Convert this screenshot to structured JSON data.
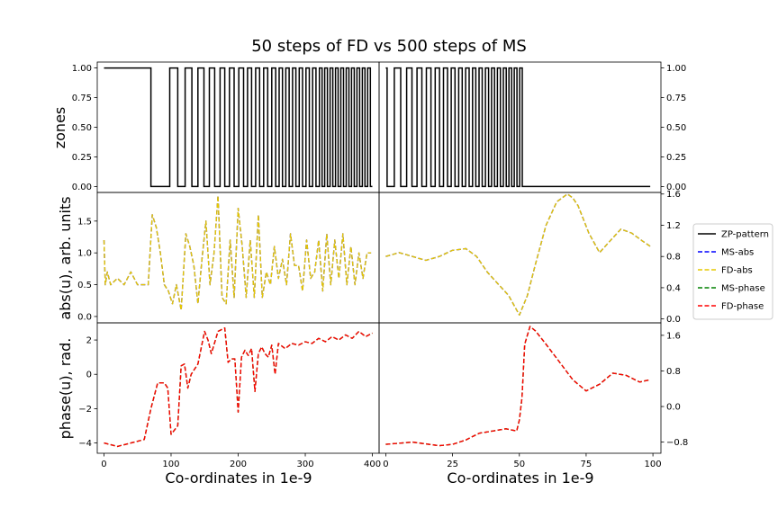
{
  "chart_data": {
    "type": "line",
    "title": "50 steps of FD vs 500 steps of MS",
    "layout": "3 rows x 2 columns, shared axes",
    "legend": {
      "placement": "right",
      "entries": [
        {
          "name": "ZP-pattern",
          "color": "#000000",
          "style": "solid"
        },
        {
          "name": "MS-abs",
          "color": "#0000ff",
          "style": "dashed"
        },
        {
          "name": "FD-abs",
          "color": "#e6c800",
          "style": "dashed"
        },
        {
          "name": "MS-phase",
          "color": "#008000",
          "style": "dashed"
        },
        {
          "name": "FD-phase",
          "color": "#ff0000",
          "style": "dashed"
        }
      ]
    },
    "columns": [
      {
        "xlabel": "Co-ordinates in 1e-9",
        "xlim": [
          -10,
          410
        ],
        "xticks": [
          0,
          100,
          200,
          300,
          400
        ],
        "tick_side": "left"
      },
      {
        "xlabel": "Co-ordinates in 1e-9",
        "xlim": [
          -2.5,
          103
        ],
        "xticks": [
          0,
          25,
          50,
          75,
          100
        ],
        "tick_side": "right"
      }
    ],
    "rows": [
      {
        "ylabel": "zones"
      },
      {
        "ylabel": "abs(u), arb. units"
      },
      {
        "ylabel": "phase(u), rad."
      }
    ],
    "panels": [
      {
        "row": 0,
        "col": 0,
        "ylim": [
          -0.05,
          1.05
        ],
        "yticks": [
          "0.00",
          "0.25",
          "0.50",
          "0.75",
          "1.00"
        ],
        "zp_edges": [
          70,
          98,
          110,
          121,
          131,
          140,
          149,
          157,
          165,
          173,
          180,
          187,
          194,
          201,
          208,
          214,
          220,
          226,
          232,
          238,
          244,
          250,
          256,
          261,
          266,
          271,
          276,
          281,
          286,
          291,
          296,
          301,
          306,
          311,
          316,
          321,
          325,
          329,
          333,
          337,
          341,
          345,
          349,
          353,
          357,
          361,
          365,
          369,
          373,
          377,
          381,
          385,
          389,
          393,
          397
        ],
        "zp_xmax": 400,
        "series": [
          {
            "name": "ZP-pattern",
            "x": [
              0,
              70,
              70,
              98,
              98,
              400
            ],
            "y": [
              1,
              1,
              0,
              0,
              1,
              0
            ]
          }
        ]
      },
      {
        "row": 0,
        "col": 1,
        "ylim": [
          -0.05,
          1.05
        ],
        "yticks": [
          "0.00",
          "0.25",
          "0.50",
          "0.75",
          "1.00"
        ],
        "zp_edges": [
          0.5,
          3.2,
          5.6,
          7.8,
          9.8,
          11.7,
          13.5,
          15.2,
          16.9,
          18.5,
          20.1,
          21.6,
          23.1,
          24.5,
          25.9,
          27.3,
          28.6,
          29.9,
          31.2,
          32.5,
          33.7,
          34.9,
          36.1,
          37.3,
          38.5,
          39.6,
          40.7,
          41.8,
          42.9,
          44.0,
          45.1,
          46.1,
          47.1,
          48.1,
          49.1,
          50.1,
          51.1
        ],
        "zp_xmax": 99,
        "series": [
          {
            "name": "ZP-pattern",
            "x": [
              0,
              51.1,
              99
            ],
            "y": [
              1,
              0,
              0
            ]
          }
        ]
      },
      {
        "row": 1,
        "col": 0,
        "ylim": [
          -0.1,
          1.95
        ],
        "yticks": [
          "0.0",
          "0.5",
          "1.0",
          "1.5"
        ],
        "series": [
          {
            "name": "MS-abs",
            "x": [
              0,
              2,
              5,
              10,
              20,
              30,
              40,
              50,
              60,
              66,
              72,
              78,
              84,
              90,
              96,
              102,
              108,
              115,
              122,
              128,
              134,
              140,
              146,
              152,
              158,
              164,
              170,
              176,
              182,
              188,
              194,
              200,
              206,
              212,
              218,
              224,
              230,
              236,
              242,
              248,
              254,
              260,
              266,
              272,
              278,
              284,
              290,
              296,
              302,
              308,
              314,
              320,
              326,
              332,
              338,
              344,
              350,
              356,
              362,
              368,
              374,
              380,
              386,
              392,
              398
            ],
            "y": [
              1.2,
              0.5,
              0.7,
              0.5,
              0.6,
              0.5,
              0.7,
              0.5,
              0.5,
              0.5,
              1.6,
              1.4,
              1.0,
              0.5,
              0.4,
              0.2,
              0.5,
              0.1,
              1.3,
              1.1,
              0.8,
              0.2,
              0.9,
              1.5,
              0.5,
              1.0,
              1.9,
              0.3,
              0.2,
              1.2,
              0.3,
              1.7,
              1.1,
              0.3,
              1.2,
              0.3,
              1.6,
              0.3,
              0.7,
              0.5,
              1.1,
              0.6,
              0.9,
              0.5,
              1.3,
              0.8,
              0.8,
              0.4,
              1.2,
              0.6,
              0.7,
              1.2,
              0.4,
              1.3,
              0.5,
              1.2,
              0.6,
              1.3,
              0.5,
              1.1,
              0.5,
              1.0,
              0.6,
              1.0,
              1.0
            ]
          },
          {
            "name": "FD-abs",
            "x": [
              0,
              2,
              5,
              10,
              20,
              30,
              40,
              50,
              60,
              66,
              72,
              78,
              84,
              90,
              96,
              102,
              108,
              115,
              122,
              128,
              134,
              140,
              146,
              152,
              158,
              164,
              170,
              176,
              182,
              188,
              194,
              200,
              206,
              212,
              218,
              224,
              230,
              236,
              242,
              248,
              254,
              260,
              266,
              272,
              278,
              284,
              290,
              296,
              302,
              308,
              314,
              320,
              326,
              332,
              338,
              344,
              350,
              356,
              362,
              368,
              374,
              380,
              386,
              392,
              398
            ],
            "y": [
              1.2,
              0.5,
              0.7,
              0.5,
              0.6,
              0.5,
              0.7,
              0.5,
              0.5,
              0.5,
              1.6,
              1.4,
              1.0,
              0.5,
              0.4,
              0.2,
              0.5,
              0.1,
              1.3,
              1.1,
              0.8,
              0.2,
              0.9,
              1.5,
              0.5,
              1.0,
              1.9,
              0.3,
              0.2,
              1.2,
              0.3,
              1.7,
              1.1,
              0.3,
              1.2,
              0.3,
              1.6,
              0.3,
              0.7,
              0.5,
              1.1,
              0.6,
              0.9,
              0.5,
              1.3,
              0.8,
              0.8,
              0.4,
              1.2,
              0.6,
              0.7,
              1.2,
              0.4,
              1.3,
              0.5,
              1.2,
              0.6,
              1.3,
              0.5,
              1.1,
              0.5,
              1.0,
              0.6,
              1.0,
              1.0
            ]
          }
        ]
      },
      {
        "row": 1,
        "col": 1,
        "ylim": [
          -0.05,
          1.62
        ],
        "yticks": [
          "0.0",
          "0.4",
          "0.8",
          "1.2",
          "1.6"
        ],
        "series": [
          {
            "name": "MS-abs",
            "x": [
              0,
              5,
              10,
              15,
              20,
              25,
              30,
              34,
              38,
              42,
              46,
              50,
              53,
              56,
              60,
              64,
              68,
              70,
              72,
              76,
              80,
              84,
              88,
              92,
              96,
              99
            ],
            "y": [
              0.8,
              0.85,
              0.8,
              0.75,
              0.8,
              0.88,
              0.9,
              0.8,
              0.6,
              0.45,
              0.3,
              0.05,
              0.3,
              0.7,
              1.2,
              1.5,
              1.6,
              1.55,
              1.45,
              1.1,
              0.85,
              1.0,
              1.15,
              1.1,
              1.0,
              0.93
            ]
          },
          {
            "name": "FD-abs",
            "x": [
              0,
              5,
              10,
              15,
              20,
              25,
              30,
              34,
              38,
              42,
              46,
              50,
              53,
              56,
              60,
              64,
              68,
              70,
              72,
              76,
              80,
              84,
              88,
              92,
              96,
              99
            ],
            "y": [
              0.8,
              0.85,
              0.8,
              0.75,
              0.8,
              0.88,
              0.9,
              0.8,
              0.6,
              0.45,
              0.3,
              0.05,
              0.3,
              0.7,
              1.2,
              1.5,
              1.6,
              1.55,
              1.45,
              1.1,
              0.85,
              1.0,
              1.15,
              1.1,
              1.0,
              0.93
            ]
          }
        ]
      },
      {
        "row": 2,
        "col": 0,
        "ylim": [
          -4.6,
          3.0
        ],
        "yticks": [
          "−4",
          "−2",
          "0",
          "2"
        ],
        "series": [
          {
            "name": "MS-phase",
            "x": [
              0,
              20,
              40,
              60,
              70,
              80,
              90,
              95,
              100,
              110,
              115,
              120,
              125,
              130,
              140,
              150,
              155,
              160,
              170,
              180,
              185,
              190,
              195,
              200,
              205,
              210,
              215,
              220,
              225,
              230,
              235,
              240,
              245,
              250,
              255,
              260,
              270,
              280,
              290,
              300,
              310,
              320,
              330,
              340,
              350,
              360,
              370,
              380,
              390,
              400
            ],
            "y": [
              -4.0,
              -4.2,
              -4.0,
              -3.8,
              -2.0,
              -0.5,
              -0.5,
              -0.8,
              -3.5,
              -3.0,
              0.5,
              0.6,
              -0.8,
              0.0,
              0.6,
              2.5,
              2.0,
              1.2,
              2.5,
              2.7,
              0.7,
              0.9,
              0.9,
              -2.2,
              1.0,
              1.4,
              1.1,
              1.5,
              -1.0,
              1.2,
              1.6,
              1.2,
              1.0,
              1.7,
              0.0,
              1.8,
              1.5,
              1.8,
              1.7,
              1.9,
              1.8,
              2.1,
              1.9,
              2.2,
              2.0,
              2.3,
              2.1,
              2.5,
              2.2,
              2.4
            ]
          },
          {
            "name": "FD-phase",
            "x": [
              0,
              20,
              40,
              60,
              70,
              80,
              90,
              95,
              100,
              110,
              115,
              120,
              125,
              130,
              140,
              150,
              155,
              160,
              170,
              180,
              185,
              190,
              195,
              200,
              205,
              210,
              215,
              220,
              225,
              230,
              235,
              240,
              245,
              250,
              255,
              260,
              270,
              280,
              290,
              300,
              310,
              320,
              330,
              340,
              350,
              360,
              370,
              380,
              390,
              400
            ],
            "y": [
              -4.0,
              -4.2,
              -4.0,
              -3.8,
              -2.0,
              -0.5,
              -0.5,
              -0.8,
              -3.5,
              -3.0,
              0.5,
              0.6,
              -0.8,
              0.0,
              0.6,
              2.5,
              2.0,
              1.2,
              2.5,
              2.7,
              0.7,
              0.9,
              0.9,
              -2.2,
              1.0,
              1.4,
              1.1,
              1.5,
              -1.0,
              1.2,
              1.6,
              1.2,
              1.0,
              1.7,
              0.0,
              1.8,
              1.5,
              1.8,
              1.7,
              1.9,
              1.8,
              2.1,
              1.9,
              2.2,
              2.0,
              2.3,
              2.1,
              2.5,
              2.2,
              2.4
            ]
          }
        ]
      },
      {
        "row": 2,
        "col": 1,
        "ylim": [
          -1.05,
          1.88
        ],
        "yticks": [
          "−0.8",
          "0.0",
          "0.8",
          "1.6"
        ],
        "series": [
          {
            "name": "MS-phase",
            "x": [
              0,
              10,
              20,
              25,
              30,
              35,
              40,
              45,
              49,
              50,
              51,
              52,
              54,
              56,
              60,
              65,
              70,
              75,
              80,
              85,
              90,
              95,
              99
            ],
            "y": [
              -0.85,
              -0.8,
              -0.88,
              -0.85,
              -0.75,
              -0.6,
              -0.55,
              -0.5,
              -0.55,
              -0.3,
              0.2,
              1.4,
              1.8,
              1.7,
              1.4,
              1.0,
              0.6,
              0.35,
              0.5,
              0.75,
              0.7,
              0.55,
              0.6
            ]
          },
          {
            "name": "FD-phase",
            "x": [
              0,
              10,
              20,
              25,
              30,
              35,
              40,
              45,
              49,
              50,
              51,
              52,
              54,
              56,
              60,
              65,
              70,
              75,
              80,
              85,
              90,
              95,
              99
            ],
            "y": [
              -0.85,
              -0.8,
              -0.88,
              -0.85,
              -0.75,
              -0.6,
              -0.55,
              -0.5,
              -0.55,
              -0.3,
              0.2,
              1.4,
              1.8,
              1.7,
              1.4,
              1.0,
              0.6,
              0.35,
              0.5,
              0.75,
              0.7,
              0.55,
              0.6
            ]
          }
        ]
      }
    ]
  }
}
